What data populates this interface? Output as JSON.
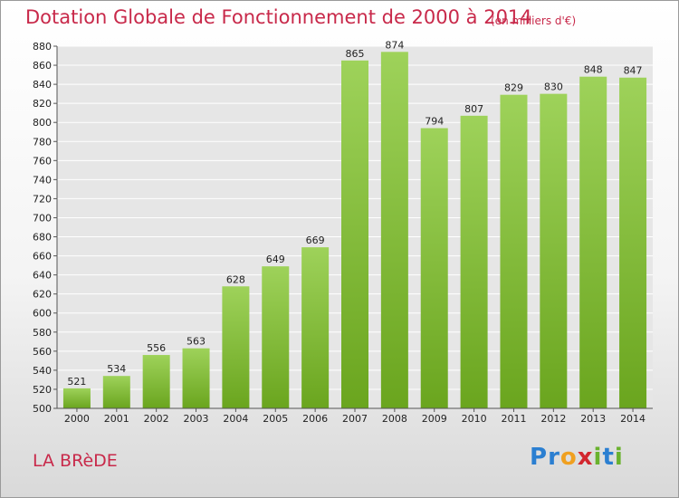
{
  "header": {
    "title": "Dotation Globale de Fonctionnement de 2000 à 2014",
    "subtitle": "(en milliers d'€)"
  },
  "footer": {
    "commune": "LA BRèDE",
    "logo_text": "Proxiti",
    "logo_letters": [
      {
        "ch": "P",
        "color": "#2b7fd1"
      },
      {
        "ch": "r",
        "color": "#2b7fd1"
      },
      {
        "ch": "o",
        "color": "#f0a020"
      },
      {
        "ch": "x",
        "color": "#d2262e"
      },
      {
        "ch": "i",
        "color": "#6ab22e"
      },
      {
        "ch": "t",
        "color": "#2b7fd1"
      },
      {
        "ch": "i",
        "color": "#6ab22e"
      }
    ]
  },
  "colors": {
    "accent_red": "#c8294a",
    "bar_top": "#9ed25a",
    "bar_bottom": "#6aa51e",
    "gridline": "#ffffff"
  },
  "chart_data": {
    "type": "bar",
    "title": "Dotation Globale de Fonctionnement de 2000 à 2014",
    "subtitle": "(en milliers d'€)",
    "xlabel": "",
    "ylabel": "",
    "categories": [
      "2000",
      "2001",
      "2002",
      "2003",
      "2004",
      "2005",
      "2006",
      "2007",
      "2008",
      "2009",
      "2010",
      "2011",
      "2012",
      "2013",
      "2014"
    ],
    "values": [
      521,
      534,
      556,
      563,
      628,
      649,
      669,
      865,
      874,
      794,
      807,
      829,
      830,
      848,
      847
    ],
    "ylim": [
      500,
      880
    ],
    "ytick_step": 20,
    "grid": true,
    "data_labels": true
  }
}
